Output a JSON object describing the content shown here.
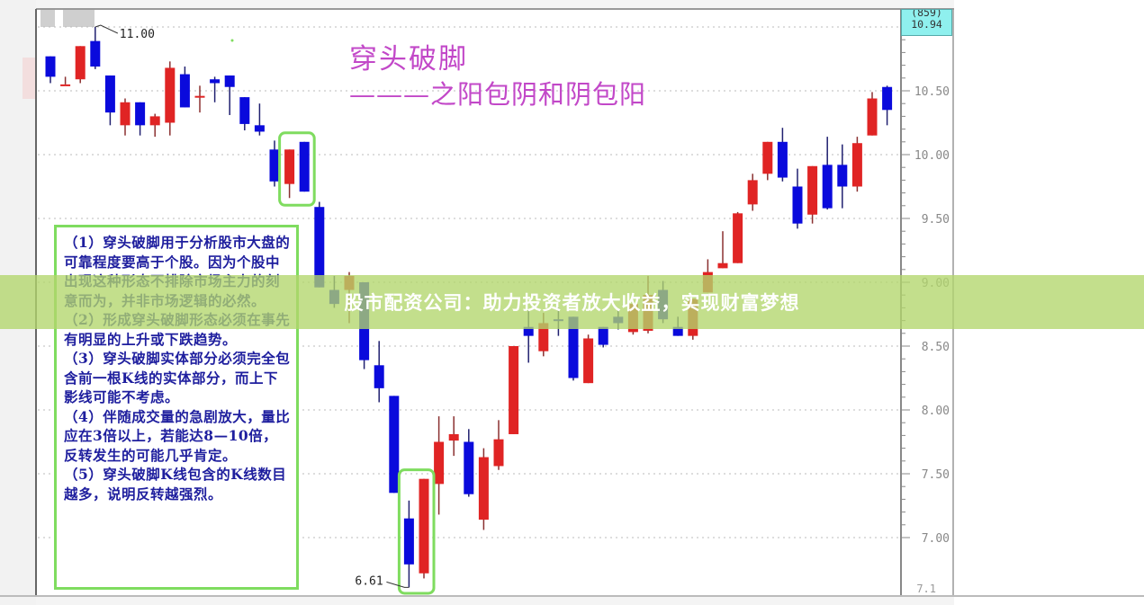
{
  "banner": {
    "text": "股市配资公司：助力投资者放大收益，实现财富梦想"
  },
  "titles": {
    "line1": "穿头破脚",
    "line2": "———之阳包阴和阴包阳"
  },
  "price_box": {
    "line1": "(859)",
    "line2": "10.94"
  },
  "notes": [
    "（1）穿头破脚用于分析股市大盘的可靠程度要高于个股。因为个股中出现这种形态不排除市场主力的刻意而为，并非市场逻辑的必然。",
    "（2）形成穿头破脚形态必须在事先有明显的上升或下跌趋势。",
    "（3）穿头破脚实体部分必须完全包含前一根K线的实体部分，而上下影线可能不考虑。",
    "（4）伴随成交量的急剧放大，量比应在3倍以上，若能达8—10倍，反转发生的可能几乎肯定。",
    "（5）穿头破脚K线包含的K线数目越多，说明反转越强烈。"
  ],
  "colors": {
    "up": "#e02424",
    "down": "#0a0adc",
    "highlight_box": "#7fdc5f",
    "title": "#c248c8",
    "banner": "#b2d66c"
  },
  "chart_data": {
    "type": "candlestick",
    "y_axis": {
      "position": "right",
      "range": [
        6.85,
        11.1
      ],
      "ticks": [
        "10.50",
        "10.00",
        "9.50",
        "9.00",
        "8.50",
        "8.00",
        "7.50",
        "7.00"
      ],
      "bottom_partial_tick": "7.1"
    },
    "grid": "dotted horizontal",
    "annotations": [
      {
        "text": "11.00",
        "at_candle": 4,
        "price": 11.0
      },
      {
        "text": "6.61",
        "at_candle": 25,
        "price": 6.61
      }
    ],
    "highlight_boxes": [
      {
        "candles": [
          17,
          18
        ],
        "meaning": "阴包阳"
      },
      {
        "candles": [
          25,
          26
        ],
        "meaning": "阳包阴"
      }
    ],
    "candles_ohlc": [
      [
        10.77,
        10.77,
        10.56,
        10.61
      ],
      [
        10.55,
        10.61,
        10.55,
        10.55
      ],
      [
        10.59,
        10.85,
        10.56,
        10.85
      ],
      [
        10.89,
        11.0,
        10.67,
        10.69
      ],
      [
        10.62,
        10.62,
        10.23,
        10.33
      ],
      [
        10.23,
        10.44,
        10.15,
        10.41
      ],
      [
        10.41,
        10.41,
        10.15,
        10.23
      ],
      [
        10.23,
        10.32,
        10.14,
        10.3
      ],
      [
        10.25,
        10.73,
        10.15,
        10.68
      ],
      [
        10.63,
        10.69,
        10.37,
        10.37
      ],
      [
        10.45,
        10.54,
        10.33,
        10.46
      ],
      [
        10.59,
        10.61,
        10.41,
        10.56
      ],
      [
        10.62,
        10.62,
        10.31,
        10.53
      ],
      [
        10.45,
        10.45,
        10.19,
        10.24
      ],
      [
        10.23,
        10.4,
        10.15,
        10.18
      ],
      [
        10.04,
        10.11,
        9.75,
        9.79
      ],
      [
        9.77,
        10.04,
        9.66,
        10.04
      ],
      [
        10.1,
        10.1,
        9.71,
        9.71
      ],
      [
        9.59,
        9.63,
        8.96,
        8.96
      ],
      [
        8.94,
        9.05,
        8.8,
        8.83
      ],
      [
        8.94,
        9.08,
        8.68,
        9.05
      ],
      [
        9.0,
        9.0,
        8.32,
        8.39
      ],
      [
        8.35,
        8.54,
        8.06,
        8.17
      ],
      [
        8.11,
        8.11,
        7.35,
        7.35
      ],
      [
        7.15,
        7.29,
        6.61,
        6.79
      ],
      [
        6.72,
        7.46,
        6.68,
        7.46
      ],
      [
        7.42,
        7.95,
        7.18,
        7.75
      ],
      [
        7.76,
        7.95,
        7.64,
        7.81
      ],
      [
        7.75,
        7.85,
        7.32,
        7.34
      ],
      [
        7.14,
        7.7,
        7.06,
        7.63
      ],
      [
        7.56,
        7.92,
        7.53,
        7.77
      ],
      [
        7.81,
        8.5,
        7.81,
        8.5
      ],
      [
        8.65,
        8.78,
        8.37,
        8.58
      ],
      [
        8.46,
        8.76,
        8.42,
        8.68
      ],
      [
        8.71,
        8.8,
        8.58,
        8.7
      ],
      [
        8.73,
        8.73,
        8.23,
        8.25
      ],
      [
        8.21,
        8.59,
        8.21,
        8.56
      ],
      [
        8.65,
        8.65,
        8.49,
        8.51
      ],
      [
        8.73,
        8.78,
        8.63,
        8.68
      ],
      [
        8.61,
        8.85,
        8.59,
        8.83
      ],
      [
        8.62,
        9.05,
        8.6,
        8.9
      ],
      [
        8.94,
        9.01,
        8.68,
        8.71
      ],
      [
        8.65,
        8.73,
        8.58,
        8.58
      ],
      [
        8.58,
        8.87,
        8.55,
        8.87
      ],
      [
        8.92,
        9.18,
        8.92,
        9.08
      ],
      [
        9.11,
        9.4,
        9.11,
        9.15
      ],
      [
        9.15,
        9.55,
        9.15,
        9.54
      ],
      [
        9.61,
        9.85,
        9.56,
        9.8
      ],
      [
        9.85,
        10.1,
        9.8,
        10.1
      ],
      [
        10.1,
        10.21,
        9.79,
        9.82
      ],
      [
        9.75,
        9.89,
        9.42,
        9.46
      ],
      [
        9.53,
        9.91,
        9.46,
        9.91
      ],
      [
        9.92,
        10.14,
        9.57,
        9.58
      ],
      [
        9.92,
        10.08,
        9.58,
        9.75
      ],
      [
        9.75,
        10.14,
        9.71,
        10.09
      ],
      [
        10.15,
        10.49,
        10.15,
        10.44
      ],
      [
        10.53,
        10.54,
        10.23,
        10.35
      ]
    ]
  }
}
